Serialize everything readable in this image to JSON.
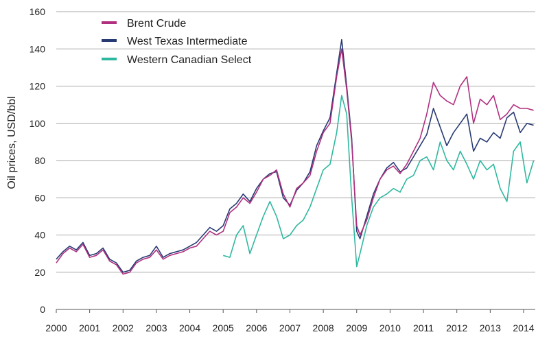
{
  "chart_data": {
    "type": "line",
    "title": "",
    "xlabel": "",
    "ylabel": "Oil prices, USD/bbl",
    "xlim": [
      2000,
      2014.35
    ],
    "ylim": [
      0,
      160
    ],
    "x_ticks": [
      "2000",
      "2001",
      "2002",
      "2003",
      "2004",
      "2005",
      "2006",
      "2007",
      "2008",
      "2009",
      "2010",
      "2011",
      "2012",
      "2013",
      "2014"
    ],
    "y_ticks": [
      "0",
      "20",
      "40",
      "60",
      "80",
      "100",
      "120",
      "140",
      "160"
    ],
    "grid": "horizontal",
    "legend_position": "top-left",
    "series": [
      {
        "name": "Brent Crude",
        "color": "#b0307f",
        "x": [
          2000.0,
          2000.2,
          2000.4,
          2000.6,
          2000.8,
          2001.0,
          2001.2,
          2001.4,
          2001.6,
          2001.8,
          2002.0,
          2002.2,
          2002.4,
          2002.6,
          2002.8,
          2003.0,
          2003.2,
          2003.4,
          2003.6,
          2003.8,
          2004.0,
          2004.2,
          2004.4,
          2004.6,
          2004.8,
          2005.0,
          2005.2,
          2005.4,
          2005.6,
          2005.8,
          2006.0,
          2006.2,
          2006.4,
          2006.6,
          2006.8,
          2007.0,
          2007.2,
          2007.4,
          2007.6,
          2007.8,
          2008.0,
          2008.2,
          2008.4,
          2008.55,
          2008.7,
          2008.85,
          2009.0,
          2009.1,
          2009.3,
          2009.5,
          2009.7,
          2009.9,
          2010.1,
          2010.3,
          2010.5,
          2010.7,
          2010.9,
          2011.1,
          2011.3,
          2011.5,
          2011.7,
          2011.9,
          2012.1,
          2012.3,
          2012.5,
          2012.7,
          2012.9,
          2013.1,
          2013.3,
          2013.5,
          2013.7,
          2013.9,
          2014.1,
          2014.3
        ],
        "values": [
          25,
          30,
          33,
          31,
          35,
          28,
          29,
          32,
          26,
          24,
          19,
          20,
          25,
          27,
          28,
          32,
          27,
          29,
          30,
          31,
          33,
          34,
          38,
          42,
          40,
          42,
          52,
          55,
          60,
          57,
          63,
          70,
          72,
          75,
          62,
          55,
          65,
          68,
          72,
          85,
          95,
          100,
          125,
          140,
          118,
          90,
          45,
          40,
          48,
          60,
          70,
          75,
          77,
          73,
          78,
          85,
          92,
          105,
          122,
          115,
          112,
          110,
          120,
          125,
          100,
          113,
          110,
          115,
          102,
          105,
          110,
          108,
          108,
          107
        ]
      },
      {
        "name": "West Texas Intermediate",
        "color": "#283a73",
        "x": [
          2000.0,
          2000.2,
          2000.4,
          2000.6,
          2000.8,
          2001.0,
          2001.2,
          2001.4,
          2001.6,
          2001.8,
          2002.0,
          2002.2,
          2002.4,
          2002.6,
          2002.8,
          2003.0,
          2003.2,
          2003.4,
          2003.6,
          2003.8,
          2004.0,
          2004.2,
          2004.4,
          2004.6,
          2004.8,
          2005.0,
          2005.2,
          2005.4,
          2005.6,
          2005.8,
          2006.0,
          2006.2,
          2006.4,
          2006.6,
          2006.8,
          2007.0,
          2007.2,
          2007.4,
          2007.6,
          2007.8,
          2008.0,
          2008.2,
          2008.4,
          2008.55,
          2008.7,
          2008.85,
          2009.0,
          2009.1,
          2009.3,
          2009.5,
          2009.7,
          2009.9,
          2010.1,
          2010.3,
          2010.5,
          2010.7,
          2010.9,
          2011.1,
          2011.3,
          2011.5,
          2011.7,
          2011.9,
          2012.1,
          2012.3,
          2012.5,
          2012.7,
          2012.9,
          2013.1,
          2013.3,
          2013.5,
          2013.7,
          2013.9,
          2014.1,
          2014.3
        ],
        "values": [
          27,
          31,
          34,
          32,
          36,
          29,
          30,
          33,
          27,
          25,
          20,
          21,
          26,
          28,
          29,
          34,
          28,
          30,
          31,
          32,
          34,
          36,
          40,
          44,
          42,
          45,
          54,
          57,
          62,
          58,
          65,
          70,
          73,
          74,
          60,
          56,
          64,
          68,
          74,
          88,
          96,
          103,
          127,
          145,
          120,
          92,
          42,
          38,
          50,
          62,
          70,
          76,
          79,
          74,
          76,
          82,
          88,
          94,
          108,
          98,
          88,
          95,
          100,
          105,
          85,
          92,
          90,
          95,
          92,
          103,
          106,
          95,
          100,
          99
        ]
      },
      {
        "name": "Western Canadian Select",
        "color": "#2fb8a0",
        "x": [
          2005.0,
          2005.2,
          2005.4,
          2005.6,
          2005.8,
          2006.0,
          2006.2,
          2006.4,
          2006.6,
          2006.8,
          2007.0,
          2007.2,
          2007.4,
          2007.6,
          2007.8,
          2008.0,
          2008.2,
          2008.4,
          2008.55,
          2008.7,
          2008.85,
          2009.0,
          2009.1,
          2009.3,
          2009.5,
          2009.7,
          2009.9,
          2010.1,
          2010.3,
          2010.5,
          2010.7,
          2010.9,
          2011.1,
          2011.3,
          2011.5,
          2011.7,
          2011.9,
          2012.1,
          2012.3,
          2012.5,
          2012.7,
          2012.9,
          2013.1,
          2013.3,
          2013.5,
          2013.7,
          2013.9,
          2014.1,
          2014.3
        ],
        "values": [
          29,
          28,
          40,
          45,
          30,
          40,
          50,
          58,
          50,
          38,
          40,
          45,
          48,
          55,
          65,
          75,
          78,
          95,
          115,
          105,
          60,
          23,
          30,
          45,
          55,
          60,
          62,
          65,
          63,
          70,
          72,
          80,
          82,
          75,
          90,
          80,
          75,
          85,
          78,
          70,
          80,
          75,
          78,
          65,
          58,
          85,
          90,
          68,
          80
        ]
      }
    ]
  }
}
